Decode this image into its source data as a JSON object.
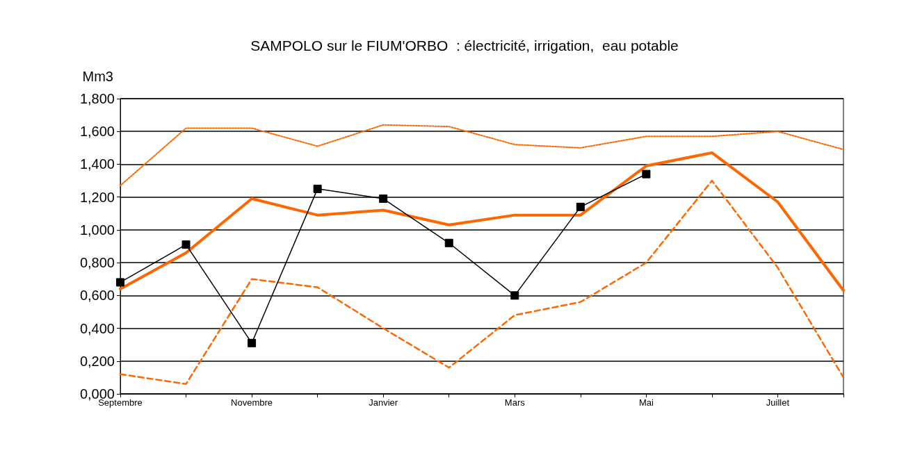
{
  "chart_data": {
    "type": "line",
    "title": "SAMPOLO sur le FIUM'ORBO  : électricité, irrigation,  eau potable",
    "ylabel": "Mm3",
    "categories": [
      "Septembre",
      null,
      "Novembre",
      null,
      "Janvier",
      null,
      "Mars",
      null,
      "Mai",
      null,
      "Juillet",
      null
    ],
    "series": [
      {
        "color": "#ff6600",
        "line_style": "dotted",
        "marker": "none",
        "values": [
          1.27,
          1.62,
          1.62,
          1.51,
          1.64,
          1.63,
          1.52,
          1.5,
          1.57,
          1.57,
          1.6,
          1.49
        ]
      },
      {
        "color": "#ff6600",
        "line_style": "solid",
        "marker": "none",
        "values": [
          0.64,
          0.86,
          1.19,
          1.09,
          1.12,
          1.03,
          1.09,
          1.09,
          1.39,
          1.47,
          1.17,
          0.63
        ]
      },
      {
        "color": "#ff6600",
        "line_style": "dashed",
        "marker": "none",
        "values": [
          0.12,
          0.06,
          0.7,
          0.65,
          0.4,
          0.16,
          0.48,
          0.56,
          0.8,
          1.3,
          0.77,
          0.1
        ]
      },
      {
        "color": "#000000",
        "line_style": "solid",
        "marker": "square",
        "values": [
          0.68,
          0.91,
          0.31,
          1.25,
          1.19,
          0.92,
          0.6,
          1.14,
          1.34,
          null,
          null,
          null
        ]
      }
    ],
    "ylim": [
      0,
      1.8
    ],
    "yticks": [
      {
        "value": 0,
        "label": "0,000"
      },
      {
        "value": 0.2,
        "label": "0,200"
      },
      {
        "value": 0.4,
        "label": "0,400"
      },
      {
        "value": 0.6,
        "label": "0,600"
      },
      {
        "value": 0.8,
        "label": "0,800"
      },
      {
        "value": 1,
        "label": "1,000"
      },
      {
        "value": 1.2,
        "label": "1,200"
      },
      {
        "value": 1.4,
        "label": "1,400"
      },
      {
        "value": 1.6,
        "label": "1,600"
      },
      {
        "value": 1.8,
        "label": "1,800"
      }
    ],
    "grid": "y"
  }
}
